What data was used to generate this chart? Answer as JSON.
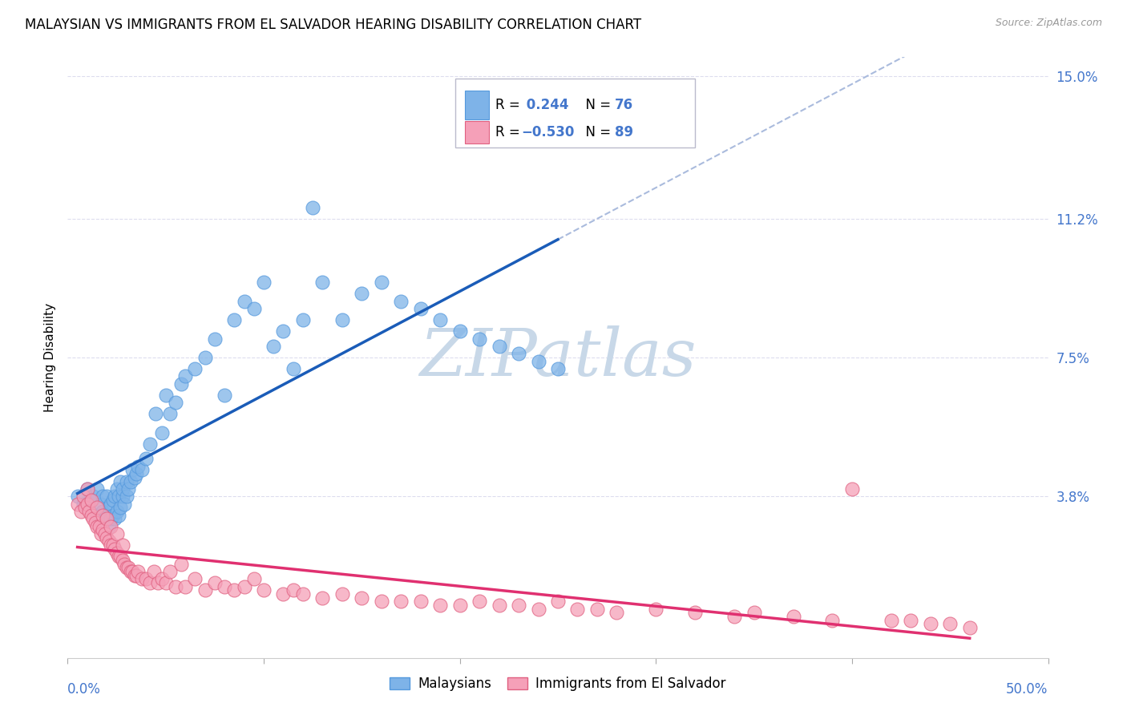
{
  "title": "MALAYSIAN VS IMMIGRANTS FROM EL SALVADOR HEARING DISABILITY CORRELATION CHART",
  "source": "Source: ZipAtlas.com",
  "ylabel": "Hearing Disability",
  "xmin": 0.0,
  "xmax": 0.5,
  "ymin": -0.005,
  "ymax": 0.155,
  "R_blue": 0.244,
  "N_blue": 76,
  "R_pink": -0.53,
  "N_pink": 89,
  "blue_color": "#7EB3E8",
  "blue_edge": "#5599DD",
  "pink_color": "#F5A0B8",
  "pink_edge": "#E06080",
  "blue_line_color": "#1A5CB8",
  "pink_line_color": "#E03070",
  "dashed_line_color": "#AABBDD",
  "watermark_color": "#C8D8E8",
  "legend_blue_label": "Malaysians",
  "legend_pink_label": "Immigrants from El Salvador",
  "background_color": "#FFFFFF",
  "grid_color": "#DDDDEE",
  "title_fontsize": 12,
  "tick_label_color": "#4477CC",
  "ytick_vals": [
    0.038,
    0.075,
    0.112,
    0.15
  ],
  "ytick_labels": [
    "3.8%",
    "7.5%",
    "11.2%",
    "15.0%"
  ],
  "blue_scatter_x": [
    0.005,
    0.008,
    0.01,
    0.01,
    0.012,
    0.013,
    0.015,
    0.015,
    0.016,
    0.017,
    0.018,
    0.018,
    0.019,
    0.02,
    0.02,
    0.021,
    0.021,
    0.022,
    0.022,
    0.023,
    0.023,
    0.024,
    0.024,
    0.025,
    0.025,
    0.026,
    0.026,
    0.027,
    0.027,
    0.028,
    0.028,
    0.029,
    0.03,
    0.03,
    0.031,
    0.032,
    0.033,
    0.034,
    0.035,
    0.036,
    0.038,
    0.04,
    0.042,
    0.045,
    0.048,
    0.05,
    0.052,
    0.055,
    0.058,
    0.06,
    0.065,
    0.07,
    0.075,
    0.08,
    0.085,
    0.09,
    0.095,
    0.1,
    0.105,
    0.11,
    0.115,
    0.12,
    0.125,
    0.13,
    0.14,
    0.15,
    0.16,
    0.17,
    0.18,
    0.19,
    0.2,
    0.21,
    0.22,
    0.23,
    0.24,
    0.25
  ],
  "blue_scatter_y": [
    0.038,
    0.036,
    0.035,
    0.04,
    0.037,
    0.038,
    0.033,
    0.04,
    0.032,
    0.036,
    0.034,
    0.038,
    0.032,
    0.033,
    0.038,
    0.03,
    0.035,
    0.032,
    0.036,
    0.033,
    0.037,
    0.032,
    0.038,
    0.034,
    0.04,
    0.033,
    0.038,
    0.042,
    0.035,
    0.038,
    0.04,
    0.036,
    0.038,
    0.042,
    0.04,
    0.042,
    0.045,
    0.043,
    0.044,
    0.046,
    0.045,
    0.048,
    0.052,
    0.06,
    0.055,
    0.065,
    0.06,
    0.063,
    0.068,
    0.07,
    0.072,
    0.075,
    0.08,
    0.065,
    0.085,
    0.09,
    0.088,
    0.095,
    0.078,
    0.082,
    0.072,
    0.085,
    0.115,
    0.095,
    0.085,
    0.092,
    0.095,
    0.09,
    0.088,
    0.085,
    0.082,
    0.08,
    0.078,
    0.076,
    0.074,
    0.072
  ],
  "pink_scatter_x": [
    0.005,
    0.007,
    0.008,
    0.009,
    0.01,
    0.01,
    0.011,
    0.012,
    0.012,
    0.013,
    0.014,
    0.015,
    0.015,
    0.016,
    0.017,
    0.018,
    0.018,
    0.019,
    0.02,
    0.02,
    0.021,
    0.022,
    0.022,
    0.023,
    0.024,
    0.025,
    0.025,
    0.026,
    0.027,
    0.028,
    0.028,
    0.029,
    0.03,
    0.031,
    0.032,
    0.033,
    0.034,
    0.035,
    0.036,
    0.038,
    0.04,
    0.042,
    0.044,
    0.046,
    0.048,
    0.05,
    0.052,
    0.055,
    0.058,
    0.06,
    0.065,
    0.07,
    0.075,
    0.08,
    0.085,
    0.09,
    0.095,
    0.1,
    0.11,
    0.115,
    0.12,
    0.13,
    0.14,
    0.15,
    0.16,
    0.17,
    0.18,
    0.19,
    0.2,
    0.21,
    0.22,
    0.23,
    0.24,
    0.25,
    0.26,
    0.27,
    0.28,
    0.3,
    0.32,
    0.34,
    0.35,
    0.37,
    0.39,
    0.4,
    0.42,
    0.43,
    0.44,
    0.45,
    0.46
  ],
  "pink_scatter_y": [
    0.036,
    0.034,
    0.038,
    0.035,
    0.036,
    0.04,
    0.034,
    0.033,
    0.037,
    0.032,
    0.031,
    0.03,
    0.035,
    0.03,
    0.028,
    0.029,
    0.033,
    0.028,
    0.027,
    0.032,
    0.026,
    0.025,
    0.03,
    0.025,
    0.024,
    0.023,
    0.028,
    0.022,
    0.022,
    0.021,
    0.025,
    0.02,
    0.019,
    0.019,
    0.018,
    0.018,
    0.017,
    0.017,
    0.018,
    0.016,
    0.016,
    0.015,
    0.018,
    0.015,
    0.016,
    0.015,
    0.018,
    0.014,
    0.02,
    0.014,
    0.016,
    0.013,
    0.015,
    0.014,
    0.013,
    0.014,
    0.016,
    0.013,
    0.012,
    0.013,
    0.012,
    0.011,
    0.012,
    0.011,
    0.01,
    0.01,
    0.01,
    0.009,
    0.009,
    0.01,
    0.009,
    0.009,
    0.008,
    0.01,
    0.008,
    0.008,
    0.007,
    0.008,
    0.007,
    0.006,
    0.007,
    0.006,
    0.005,
    0.04,
    0.005,
    0.005,
    0.004,
    0.004,
    0.003
  ]
}
